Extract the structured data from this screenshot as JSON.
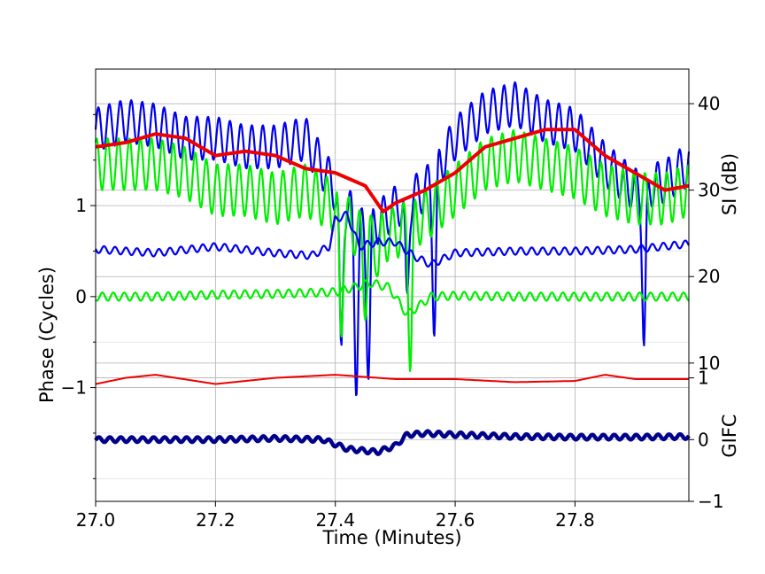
{
  "chart_data": {
    "type": "line",
    "xlabel": "Time (Minutes)",
    "ylabel_left": "Phase (Cycles)",
    "ylabel_right_top": "SI (dB)",
    "ylabel_right_bottom": "GIFC",
    "xlim": [
      27.0,
      27.99
    ],
    "x_ticks": [
      27.0,
      27.2,
      27.4,
      27.6,
      27.8
    ],
    "x_tick_labels": [
      "27.0",
      "27.2",
      "27.4",
      "27.6",
      "27.8"
    ],
    "phase_ylim": [
      -2.25,
      2.5
    ],
    "phase_ticks": [
      1,
      0,
      -1
    ],
    "phase_tick_labels": [
      "1",
      "0",
      "−1"
    ],
    "si_ylim": [
      -6,
      44
    ],
    "si_ticks": [
      40,
      30,
      20,
      10
    ],
    "si_tick_labels": [
      "40",
      "30",
      "20",
      "10"
    ],
    "gifc_ylim": [
      -1,
      6
    ],
    "gifc_ticks": [
      1,
      0,
      -1
    ],
    "gifc_tick_labels": [
      "1",
      "0",
      "−1"
    ],
    "grid": true,
    "colors": {
      "blue": "#0000ee",
      "green": "#00ee00",
      "red": "#ee0000",
      "navy": "#00008b"
    },
    "series": [
      {
        "color": "blue",
        "axis": "si",
        "x": [
          27.0,
          27.05,
          27.1,
          27.15,
          27.2,
          27.25,
          27.3,
          27.35,
          27.4,
          27.45,
          27.5,
          27.55,
          27.6,
          27.65,
          27.7,
          27.75,
          27.8,
          27.85,
          27.9,
          27.95,
          27.99
        ],
        "y": [
          37,
          38,
          37.5,
          36,
          36,
          35,
          35,
          36,
          30,
          25,
          28,
          30,
          36,
          39,
          40,
          38,
          37,
          33,
          30,
          31,
          33
        ],
        "oscillation_amplitude": 2.5,
        "dips": [
          [
            27.41,
            12
          ],
          [
            27.435,
            6
          ],
          [
            27.455,
            8
          ],
          [
            27.52,
            18
          ],
          [
            27.565,
            13
          ],
          [
            27.915,
            12
          ]
        ]
      },
      {
        "color": "green",
        "axis": "si",
        "x": [
          27.0,
          27.05,
          27.1,
          27.15,
          27.2,
          27.25,
          27.3,
          27.35,
          27.4,
          27.45,
          27.5,
          27.55,
          27.6,
          27.65,
          27.7,
          27.75,
          27.8,
          27.85,
          27.9,
          27.95,
          27.99
        ],
        "y": [
          33,
          33,
          33,
          32,
          30,
          30,
          29,
          30,
          28,
          24,
          25,
          27,
          30,
          33,
          34,
          33,
          32,
          30,
          29,
          29,
          30
        ],
        "oscillation_amplitude": 3,
        "dips": [
          [
            27.41,
            13
          ],
          [
            27.45,
            15
          ],
          [
            27.525,
            9
          ],
          [
            27.47,
            20
          ]
        ]
      },
      {
        "color": "red",
        "axis": "si",
        "x": [
          27.0,
          27.05,
          27.1,
          27.15,
          27.2,
          27.25,
          27.3,
          27.35,
          27.4,
          27.45,
          27.48,
          27.5,
          27.55,
          27.6,
          27.65,
          27.7,
          27.75,
          27.8,
          27.85,
          27.9,
          27.95,
          27.99
        ],
        "y": [
          35,
          35.5,
          36.5,
          36,
          34,
          34.5,
          34,
          32.5,
          32,
          30.5,
          27.5,
          28.5,
          30,
          32,
          35,
          36,
          37,
          37,
          34,
          32,
          30,
          30.5
        ],
        "oscillation_amplitude": 0
      },
      {
        "color": "blue",
        "axis": "phase",
        "x": [
          27.0,
          27.1,
          27.2,
          27.3,
          27.36,
          27.39,
          27.4,
          27.42,
          27.44,
          27.47,
          27.5,
          27.53,
          27.56,
          27.6,
          27.7,
          27.8,
          27.9,
          27.99
        ],
        "y": [
          0.52,
          0.48,
          0.55,
          0.48,
          0.45,
          0.55,
          0.85,
          0.9,
          0.55,
          0.6,
          0.6,
          0.45,
          0.35,
          0.48,
          0.5,
          0.5,
          0.52,
          0.58
        ],
        "oscillation_amplitude": 0.04
      },
      {
        "color": "green",
        "axis": "phase",
        "x": [
          27.0,
          27.1,
          27.2,
          27.3,
          27.4,
          27.46,
          27.49,
          27.52,
          27.56,
          27.6,
          27.7,
          27.8,
          27.9,
          27.99
        ],
        "y": [
          0.0,
          0.0,
          0.02,
          0.03,
          0.05,
          0.15,
          0.1,
          -0.2,
          0.0,
          0.01,
          0.0,
          0.0,
          0.0,
          0.0
        ],
        "oscillation_amplitude": 0.045
      },
      {
        "color": "red",
        "axis": "gifc",
        "x": [
          27.0,
          27.05,
          27.1,
          27.2,
          27.3,
          27.4,
          27.5,
          27.6,
          27.7,
          27.8,
          27.85,
          27.9,
          27.99
        ],
        "y": [
          0.9,
          1.0,
          1.05,
          0.9,
          1.0,
          1.05,
          0.98,
          0.98,
          0.93,
          0.95,
          1.05,
          0.98,
          0.98
        ],
        "oscillation_amplitude": 0
      },
      {
        "color": "navy",
        "axis": "gifc",
        "x": [
          27.0,
          27.1,
          27.2,
          27.3,
          27.38,
          27.42,
          27.47,
          27.5,
          27.52,
          27.55,
          27.6,
          27.7,
          27.8,
          27.9,
          27.99
        ],
        "y": [
          0.0,
          0.0,
          0.0,
          0.02,
          0.0,
          -0.15,
          -0.2,
          -0.1,
          0.08,
          0.1,
          0.08,
          0.05,
          0.04,
          0.04,
          0.05
        ],
        "oscillation_amplitude": 0.04
      }
    ]
  }
}
